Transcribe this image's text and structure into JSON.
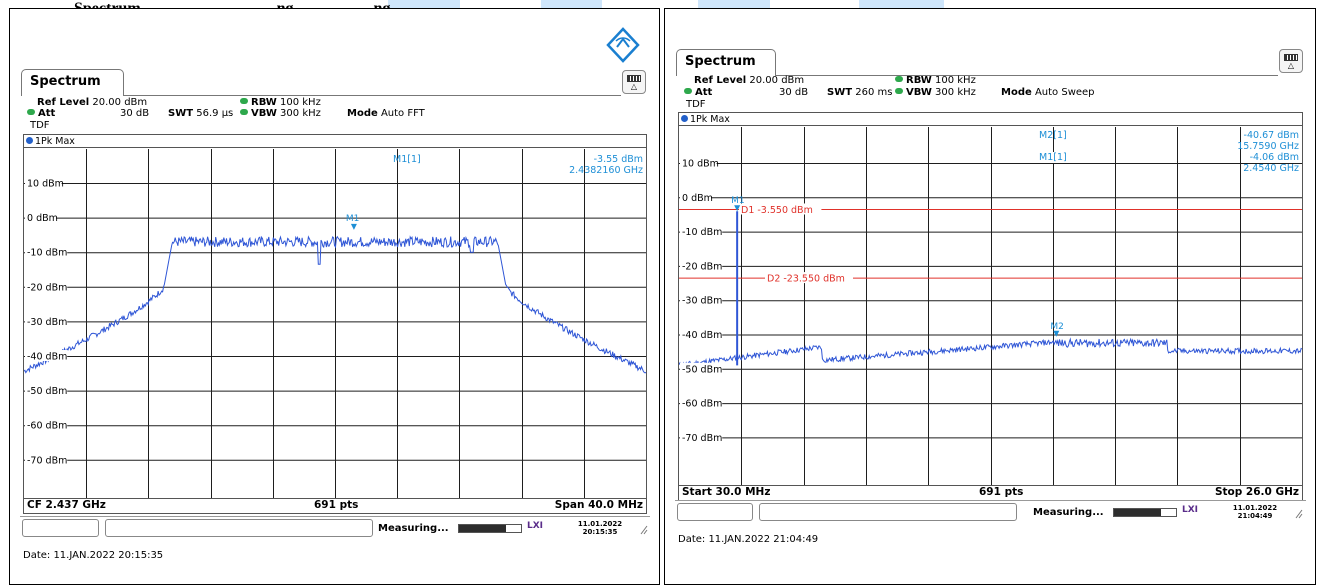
{
  "heading": "Spectrum                                  ng                    ng",
  "panels": [
    {
      "tab_label": "Spectrum",
      "ref_level_label": "Ref Level",
      "ref_level_value": "20.00 dBm",
      "att_label": "Att",
      "att_value": "30 dB",
      "swt_label": "SWT",
      "swt_value": "56.9 µs",
      "rbw_label": "RBW",
      "rbw_value": "100 kHz",
      "vbw_label": "VBW",
      "vbw_value": "300 kHz",
      "mode_label": "Mode",
      "mode_value": "Auto FFT",
      "tdf": "TDF",
      "trace_label": "1Pk Max",
      "marker_readout": [
        {
          "name": "M1[1]",
          "level": "-3.55 dBm",
          "freq": "2.4382160 GHz"
        }
      ],
      "y_ticks": [
        "10 dBm",
        "0 dBm",
        "-10 dBm",
        "-20 dBm",
        "-30 dBm",
        "-40 dBm",
        "-50 dBm",
        "-60 dBm",
        "-70 dBm"
      ],
      "bottom_left": "CF 2.437 GHz",
      "bottom_mid": "691 pts",
      "bottom_right": "Span 40.0 MHz",
      "status": "Measuring...",
      "status_progress": 0.75,
      "datetime_date": "11.01.2022",
      "datetime_time": "20:15:35",
      "date_footer": "Date: 11.JAN.2022  20:15:35"
    },
    {
      "tab_label": "Spectrum",
      "ref_level_label": "Ref Level",
      "ref_level_value": "20.00 dBm",
      "att_label": "Att",
      "att_value": "30 dB",
      "swt_label": "SWT",
      "swt_value": "260 ms",
      "rbw_label": "RBW",
      "rbw_value": "100 kHz",
      "vbw_label": "VBW",
      "vbw_value": "300 kHz",
      "mode_label": "Mode",
      "mode_value": "Auto Sweep",
      "tdf": "TDF",
      "trace_label": "1Pk Max",
      "marker_readout": [
        {
          "name": "M2[1]",
          "level": "-40.67 dBm",
          "freq": "15.7590 GHz"
        },
        {
          "name": "M1[1]",
          "level": "-4.06 dBm",
          "freq": "2.4540 GHz"
        }
      ],
      "display_lines": [
        {
          "label": "D1",
          "value": "-3.550 dBm"
        },
        {
          "label": "D2",
          "value": "-23.550 dBm"
        }
      ],
      "y_ticks": [
        "10 dBm",
        "0 dBm",
        "-10 dBm",
        "-20 dBm",
        "-30 dBm",
        "-40 dBm",
        "-50 dBm",
        "-60 dBm",
        "-70 dBm"
      ],
      "bottom_left": "Start 30.0 MHz",
      "bottom_mid": "691 pts",
      "bottom_right": "Stop 26.0 GHz",
      "status": "Measuring...",
      "status_progress": 0.75,
      "datetime_date": "11.01.2022",
      "datetime_time": "21:04:49",
      "date_footer": "Date: 11.JAN.2022  21:04:49"
    }
  ],
  "colors": {
    "trace": "#2f56d6",
    "marker": "#1e8fd6",
    "display_line": "#e0312a",
    "grid": "#1e1e1e"
  }
}
